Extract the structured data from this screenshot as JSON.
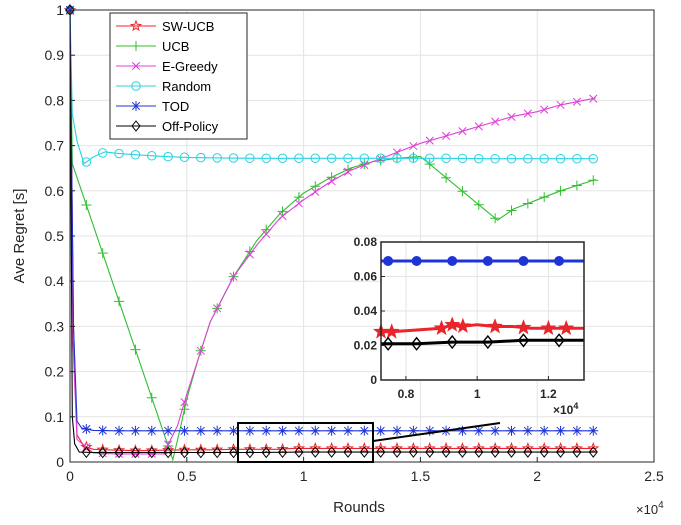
{
  "chart_data": {
    "type": "line",
    "xlabel": "Rounds",
    "ylabel": "Ave Regret [s]",
    "x_multiplier_label": "×10",
    "x_multiplier_exp": "4",
    "xlim": [
      0,
      25000
    ],
    "ylim": [
      0,
      1
    ],
    "xticks": [
      0,
      5000,
      10000,
      15000,
      20000,
      25000
    ],
    "xtick_labels": [
      "0",
      "0.5",
      "1",
      "1.5",
      "2",
      "2.5"
    ],
    "yticks": [
      0,
      0.1,
      0.2,
      0.3,
      0.4,
      0.5,
      0.6,
      0.7,
      0.8,
      0.9,
      1
    ],
    "ytick_labels": [
      "0",
      "0.1",
      "0.2",
      "0.3",
      "0.4",
      "0.5",
      "0.6",
      "0.7",
      "0.8",
      "0.9",
      "1"
    ],
    "grid": true,
    "legend_position": "top-left",
    "series": [
      {
        "name": "SW-UCB",
        "color": "#e8262b",
        "marker": "star",
        "x": [
          0,
          150,
          300,
          600,
          1000,
          2000,
          3000,
          4000,
          5000,
          6000,
          7000,
          8000,
          9000,
          9500,
          10000,
          12000,
          14000,
          16000,
          18000,
          20000,
          22500
        ],
        "y": [
          1.0,
          0.3,
          0.06,
          0.035,
          0.028,
          0.026,
          0.025,
          0.026,
          0.027,
          0.027,
          0.028,
          0.028,
          0.028,
          0.03,
          0.03,
          0.03,
          0.03,
          0.03,
          0.03,
          0.03,
          0.03
        ]
      },
      {
        "name": "UCB",
        "color": "#2fbf2f",
        "marker": "plus",
        "x": [
          0,
          100,
          4400,
          4700,
          5000,
          5500,
          6000,
          7000,
          8000,
          9000,
          10000,
          11000,
          12000,
          13000,
          14000,
          15000,
          18300,
          19000,
          20000,
          21000,
          22500
        ],
        "y": [
          1.0,
          0.66,
          0.005,
          0.07,
          0.14,
          0.23,
          0.31,
          0.41,
          0.49,
          0.55,
          0.595,
          0.625,
          0.65,
          0.665,
          0.672,
          0.676,
          0.535,
          0.56,
          0.58,
          0.6,
          0.625
        ]
      },
      {
        "name": "E-Greedy",
        "color": "#e040d8",
        "marker": "x",
        "x": [
          0,
          100,
          300,
          1000,
          2000,
          3000,
          4000,
          4600,
          5000,
          5500,
          6000,
          7000,
          8000,
          9000,
          10000,
          11000,
          12000,
          13000,
          14000,
          15000,
          16000,
          17000,
          18000,
          19000,
          20000,
          21000,
          22500
        ],
        "y": [
          1.0,
          0.3,
          0.05,
          0.02,
          0.018,
          0.018,
          0.018,
          0.08,
          0.15,
          0.23,
          0.31,
          0.41,
          0.48,
          0.54,
          0.58,
          0.615,
          0.645,
          0.665,
          0.685,
          0.705,
          0.72,
          0.735,
          0.75,
          0.765,
          0.775,
          0.79,
          0.805
        ]
      },
      {
        "name": "Random",
        "color": "#29d3e0",
        "marker": "circle",
        "x": [
          0,
          100,
          300,
          600,
          1000,
          1500,
          2000,
          3000,
          4000,
          5000,
          6000,
          8000,
          10000,
          12000,
          14000,
          16000,
          18000,
          20000,
          22500
        ],
        "y": [
          1.0,
          0.77,
          0.71,
          0.66,
          0.675,
          0.686,
          0.683,
          0.679,
          0.676,
          0.674,
          0.673,
          0.672,
          0.672,
          0.672,
          0.672,
          0.672,
          0.671,
          0.671,
          0.671
        ]
      },
      {
        "name": "TOD",
        "color": "#1f34d6",
        "marker": "asterisk",
        "x": [
          0,
          150,
          300,
          500,
          1000,
          2000,
          3000,
          4000,
          5000,
          6000,
          8000,
          10000,
          12000,
          14000,
          16000,
          18000,
          20000,
          22500
        ],
        "y": [
          1.0,
          0.3,
          0.09,
          0.075,
          0.07,
          0.069,
          0.069,
          0.069,
          0.069,
          0.069,
          0.069,
          0.069,
          0.069,
          0.069,
          0.069,
          0.069,
          0.069,
          0.069
        ]
      },
      {
        "name": "Off-Policy",
        "color": "#000000",
        "marker": "diamond",
        "x": [
          0,
          100,
          200,
          400,
          1000,
          2000,
          3000,
          4000,
          5000,
          6000,
          8000,
          10000,
          12000,
          14000,
          16000,
          18000,
          20000,
          22500
        ],
        "y": [
          1.0,
          0.1,
          0.04,
          0.022,
          0.021,
          0.021,
          0.021,
          0.021,
          0.021,
          0.021,
          0.021,
          0.022,
          0.022,
          0.022,
          0.022,
          0.022,
          0.022,
          0.022
        ]
      }
    ],
    "inset": {
      "xlim": [
        7300,
        13000
      ],
      "ylim": [
        0,
        0.08
      ],
      "xticks": [
        8000,
        10000,
        12000
      ],
      "xtick_labels": [
        "0.8",
        "1",
        "1.2"
      ],
      "yticks": [
        0,
        0.02,
        0.04,
        0.06,
        0.08
      ],
      "ytick_labels": [
        "0",
        "0.02",
        "0.04",
        "0.06",
        "0.08"
      ],
      "x_multiplier_label": "×10",
      "x_multiplier_exp": "4",
      "series": [
        {
          "color": "#1f34d6",
          "marker": "dot",
          "x": [
            7300,
            8300,
            9300,
            10300,
            11300,
            12300,
            13000
          ],
          "y": [
            0.069,
            0.069,
            0.069,
            0.069,
            0.069,
            0.069,
            0.069
          ]
        },
        {
          "color": "#e8262b",
          "marker": "star",
          "x": [
            7300,
            7600,
            8300,
            9000,
            9300,
            9500,
            10000,
            10500,
            11000,
            11500,
            12000,
            12500,
            13000
          ],
          "y": [
            0.028,
            0.028,
            0.029,
            0.03,
            0.032,
            0.031,
            0.032,
            0.031,
            0.031,
            0.03,
            0.03,
            0.03,
            0.03
          ]
        },
        {
          "color": "#000000",
          "marker": "diamond",
          "x": [
            7300,
            8300,
            9300,
            10300,
            11300,
            12300,
            13000
          ],
          "y": [
            0.021,
            0.021,
            0.022,
            0.022,
            0.023,
            0.023,
            0.023
          ]
        }
      ]
    }
  }
}
